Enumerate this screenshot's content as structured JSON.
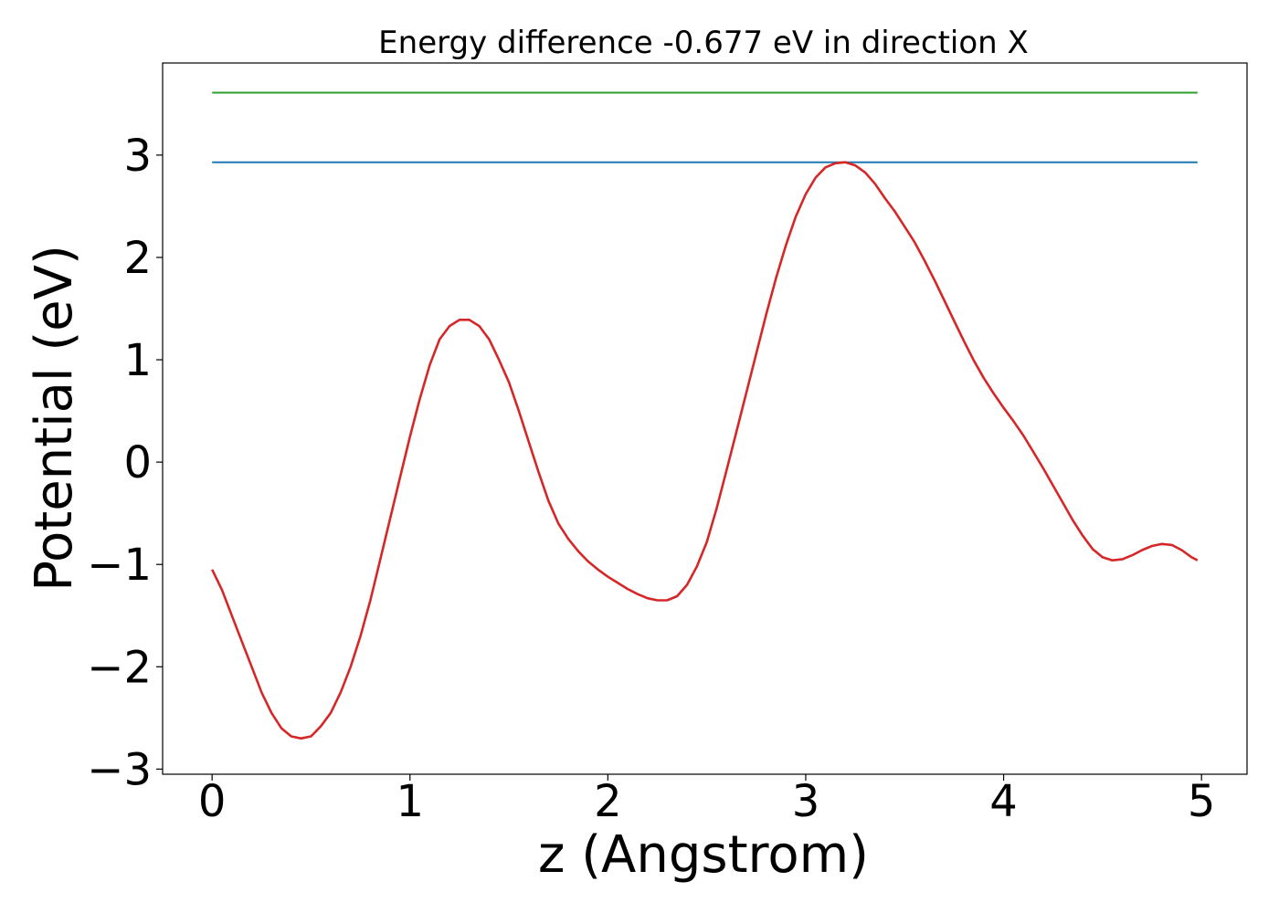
{
  "chart_data": {
    "type": "line",
    "title": "Energy difference -0.677 eV in direction X",
    "xlabel": "z (Angstrom)",
    "ylabel": "Potential (eV)",
    "xlim": [
      -0.25,
      5.23
    ],
    "ylim": [
      -3.05,
      3.9
    ],
    "xticks": [
      0,
      1,
      2,
      3,
      4,
      5
    ],
    "xtick_labels": [
      "0",
      "1",
      "2",
      "3",
      "4",
      "5"
    ],
    "yticks": [
      -3,
      -2,
      -1,
      0,
      1,
      2,
      3
    ],
    "ytick_labels": [
      "−3",
      "−2",
      "−1",
      "0",
      "1",
      "2",
      "3"
    ],
    "grid": false,
    "series": [
      {
        "color": "#2ca02c",
        "x": [
          0,
          4.98
        ],
        "y": [
          3.61,
          3.61
        ]
      },
      {
        "color": "#1f77b4",
        "x": [
          0,
          4.98
        ],
        "y": [
          2.93,
          2.93
        ]
      },
      {
        "color": "#d62728",
        "x": [
          0,
          0.05,
          0.1,
          0.15,
          0.2,
          0.25,
          0.3,
          0.35,
          0.4,
          0.45,
          0.5,
          0.55,
          0.6,
          0.65,
          0.7,
          0.75,
          0.8,
          0.85,
          0.9,
          0.95,
          1.0,
          1.05,
          1.1,
          1.15,
          1.2,
          1.25,
          1.3,
          1.35,
          1.4,
          1.45,
          1.5,
          1.55,
          1.6,
          1.65,
          1.7,
          1.75,
          1.8,
          1.85,
          1.9,
          1.95,
          2.0,
          2.05,
          2.1,
          2.15,
          2.2,
          2.25,
          2.3,
          2.35,
          2.4,
          2.45,
          2.5,
          2.55,
          2.6,
          2.65,
          2.7,
          2.75,
          2.8,
          2.85,
          2.9,
          2.95,
          3.0,
          3.05,
          3.1,
          3.15,
          3.2,
          3.25,
          3.3,
          3.35,
          3.4,
          3.45,
          3.5,
          3.55,
          3.6,
          3.65,
          3.7,
          3.75,
          3.8,
          3.85,
          3.9,
          3.95,
          4.0,
          4.05,
          4.1,
          4.15,
          4.2,
          4.25,
          4.3,
          4.35,
          4.4,
          4.45,
          4.5,
          4.55,
          4.6,
          4.65,
          4.7,
          4.75,
          4.8,
          4.85,
          4.9,
          4.95,
          4.98
        ],
        "y": [
          -1.05,
          -1.25,
          -1.5,
          -1.75,
          -2.0,
          -2.25,
          -2.45,
          -2.6,
          -2.68,
          -2.7,
          -2.68,
          -2.58,
          -2.45,
          -2.25,
          -2.0,
          -1.7,
          -1.35,
          -0.95,
          -0.55,
          -0.15,
          0.25,
          0.62,
          0.95,
          1.2,
          1.33,
          1.39,
          1.39,
          1.33,
          1.2,
          1.0,
          0.78,
          0.5,
          0.2,
          -0.1,
          -0.38,
          -0.6,
          -0.75,
          -0.87,
          -0.97,
          -1.05,
          -1.12,
          -1.18,
          -1.24,
          -1.29,
          -1.33,
          -1.35,
          -1.35,
          -1.31,
          -1.2,
          -1.02,
          -0.78,
          -0.45,
          -0.08,
          0.3,
          0.68,
          1.06,
          1.44,
          1.8,
          2.12,
          2.4,
          2.62,
          2.78,
          2.88,
          2.92,
          2.93,
          2.9,
          2.83,
          2.72,
          2.58,
          2.45,
          2.3,
          2.15,
          1.97,
          1.78,
          1.58,
          1.38,
          1.18,
          0.99,
          0.82,
          0.67,
          0.53,
          0.4,
          0.26,
          0.1,
          -0.06,
          -0.23,
          -0.4,
          -0.57,
          -0.72,
          -0.85,
          -0.93,
          -0.96,
          -0.95,
          -0.91,
          -0.86,
          -0.82,
          -0.8,
          -0.81,
          -0.86,
          -0.93,
          -0.96
        ]
      }
    ]
  }
}
